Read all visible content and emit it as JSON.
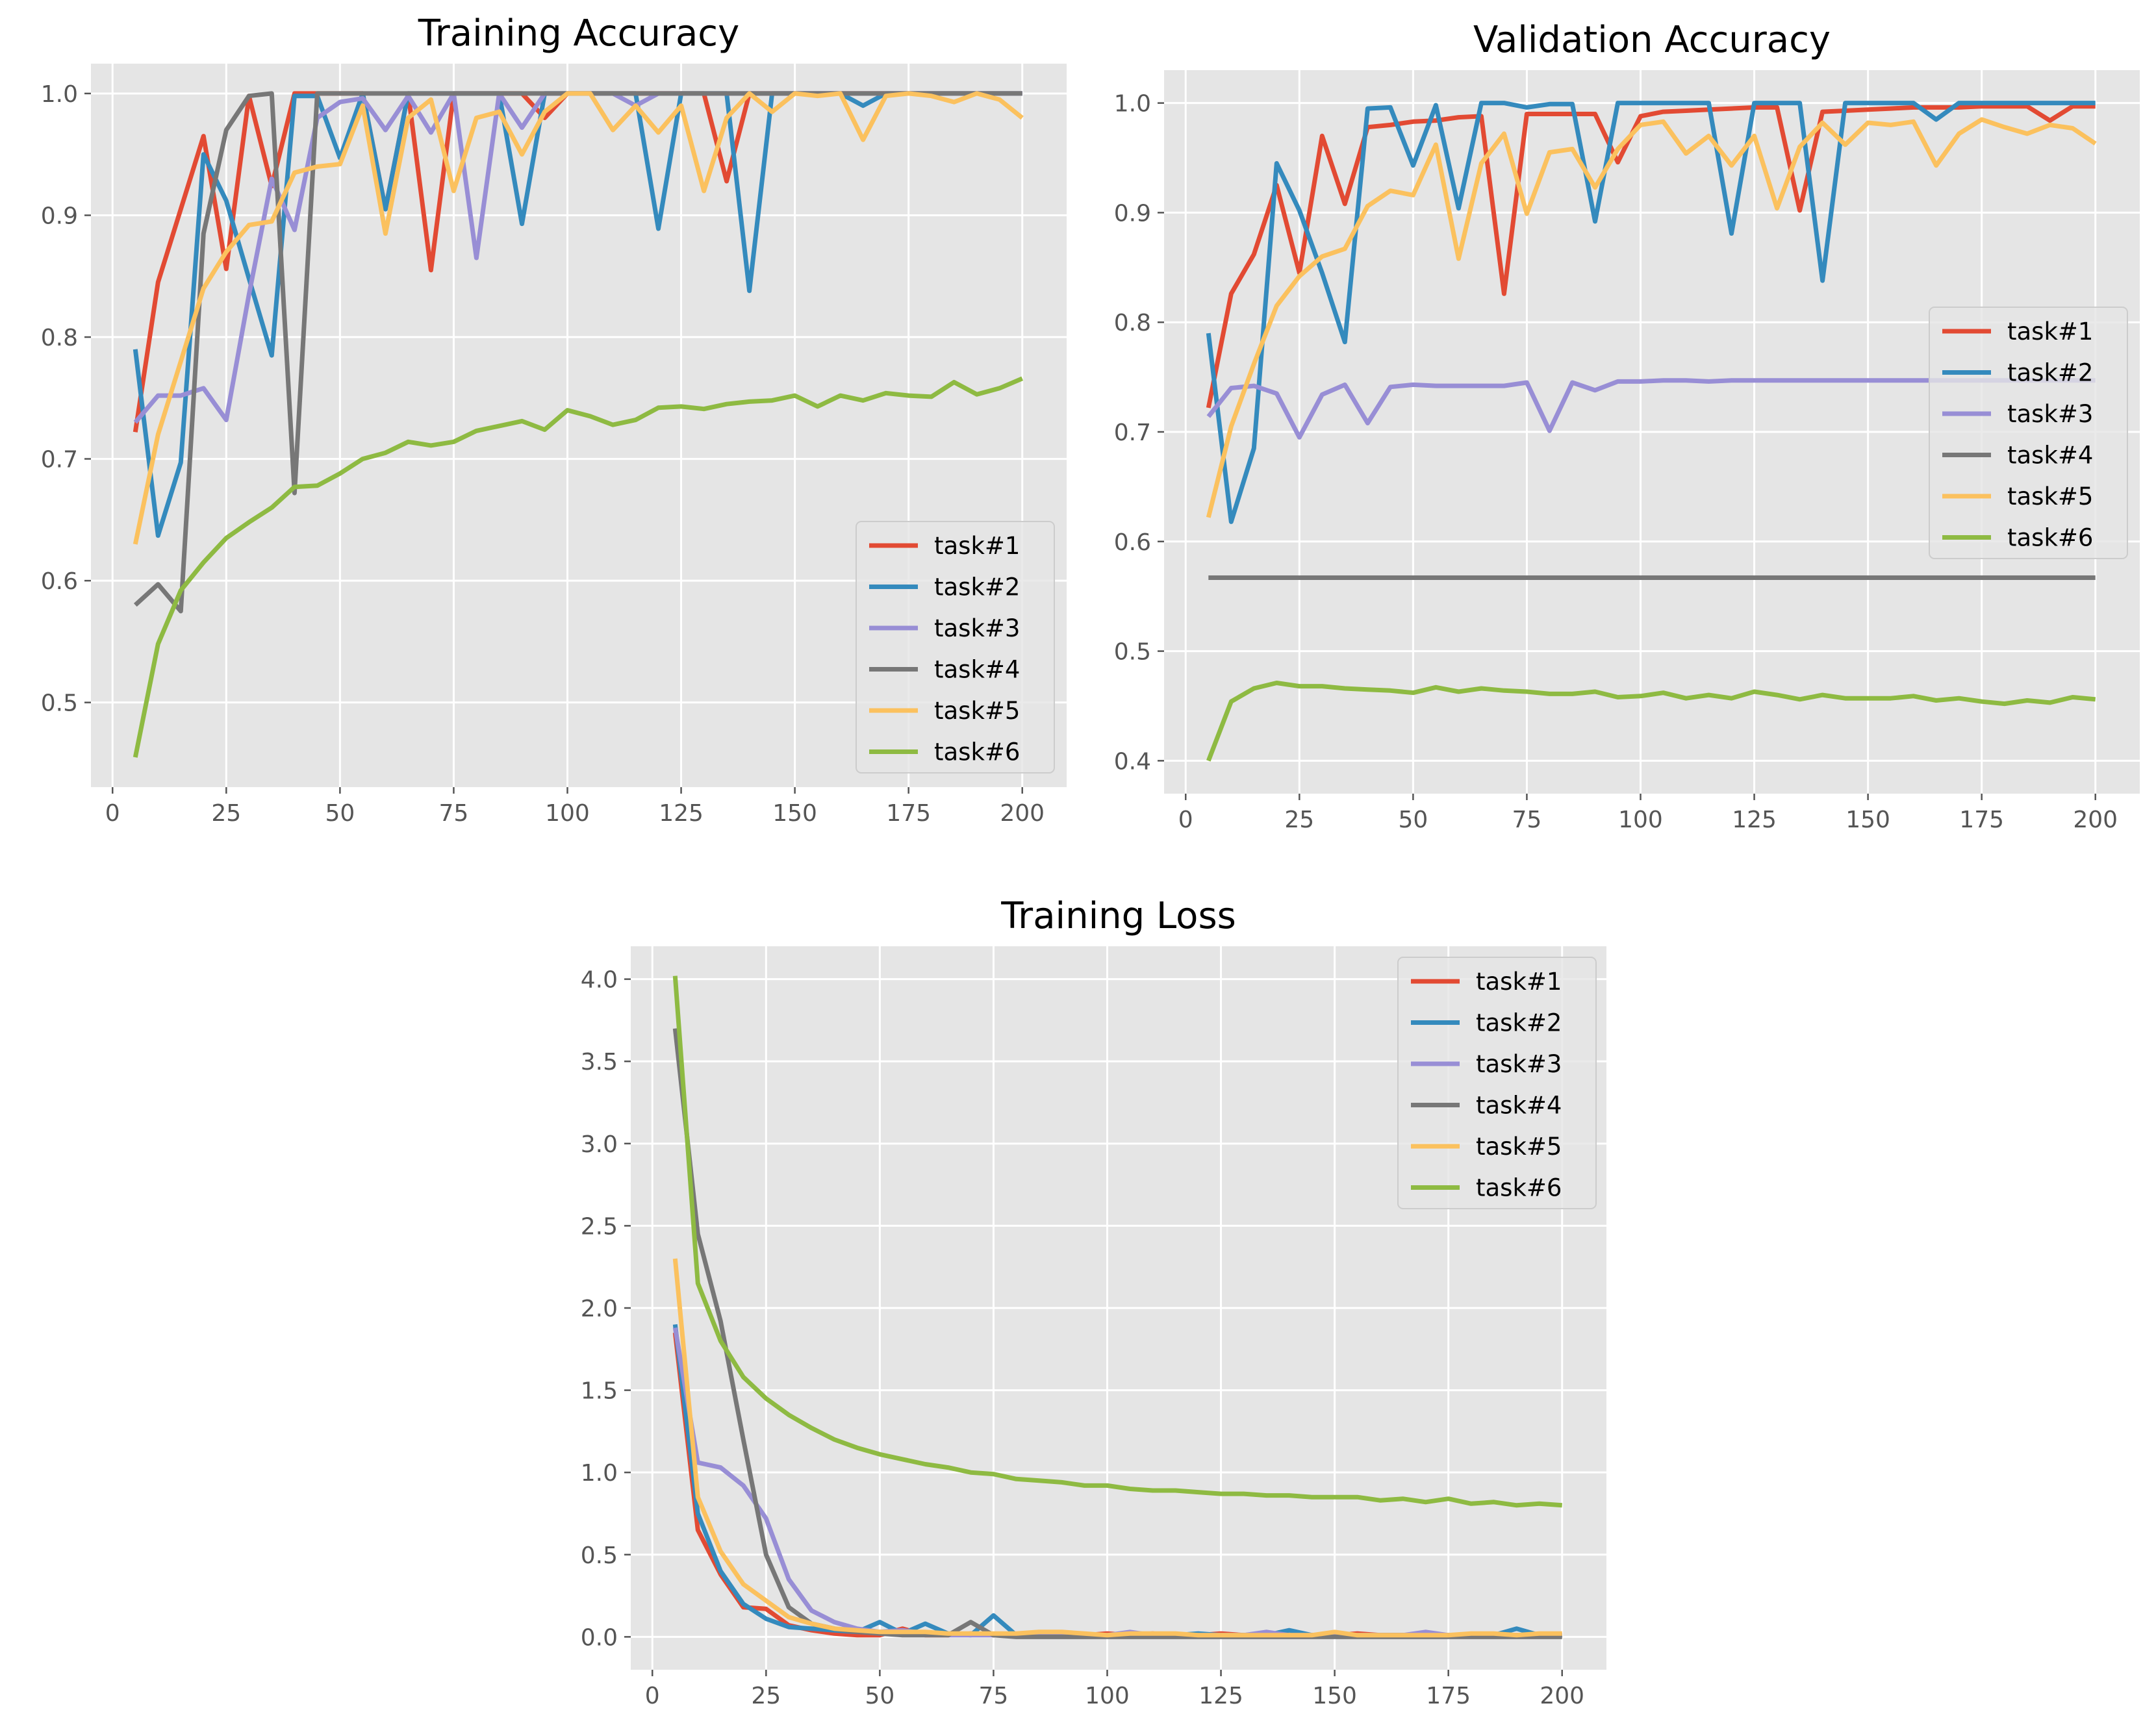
{
  "figure": {
    "colors": {
      "task1": "#E24A33",
      "task2": "#348ABD",
      "task3": "#988ED5",
      "task4": "#777777",
      "task5": "#FBC15E",
      "task6": "#8EBA42",
      "panel_bg": "#E5E5E5",
      "grid": "#FFFFFF",
      "tick_text": "#555555"
    }
  },
  "chart_data": [
    {
      "id": "train_acc",
      "type": "line",
      "title": "Training Accuracy",
      "xlabel": "",
      "ylabel": "",
      "xlim": [
        -4.75,
        209.75
      ],
      "ylim": [
        0.4305,
        1.0245
      ],
      "xticks": [
        0,
        25,
        50,
        75,
        100,
        125,
        150,
        175,
        200
      ],
      "xtick_labels": [
        "0",
        "25",
        "50",
        "75",
        "100",
        "125",
        "150",
        "175",
        "200"
      ],
      "yticks": [
        0.5,
        0.6,
        0.7,
        0.8,
        0.9,
        1.0
      ],
      "ytick_labels": [
        "0.5",
        "0.6",
        "0.7",
        "0.8",
        "0.9",
        "1.0"
      ],
      "grid": true,
      "legend_position": "lower-right",
      "x": [
        5,
        10,
        15,
        20,
        25,
        30,
        35,
        40,
        45,
        50,
        55,
        60,
        65,
        70,
        75,
        80,
        85,
        90,
        95,
        100,
        105,
        110,
        115,
        120,
        125,
        130,
        135,
        140,
        145,
        150,
        155,
        160,
        165,
        170,
        175,
        180,
        185,
        190,
        195,
        200
      ],
      "series": [
        {
          "name": "task#1",
          "values": [
            0.722,
            0.845,
            0.905,
            0.965,
            0.856,
            0.998,
            0.924,
            1.0,
            1.0,
            1.0,
            1.0,
            0.905,
            1.0,
            0.855,
            1.0,
            1.0,
            1.0,
            1.0,
            0.98,
            1.0,
            1.0,
            1.0,
            1.0,
            1.0,
            1.0,
            1.0,
            0.928,
            1.0,
            1.0,
            1.0,
            1.0,
            1.0,
            1.0,
            1.0,
            1.0,
            1.0,
            1.0,
            1.0,
            1.0,
            1.0
          ]
        },
        {
          "name": "task#2",
          "values": [
            0.79,
            0.637,
            0.697,
            0.95,
            0.912,
            0.848,
            0.785,
            0.998,
            0.998,
            0.947,
            1.0,
            0.905,
            1.0,
            1.0,
            1.0,
            1.0,
            1.0,
            0.893,
            1.0,
            1.0,
            1.0,
            1.0,
            1.0,
            0.889,
            1.0,
            1.0,
            1.0,
            0.838,
            1.0,
            1.0,
            1.0,
            1.0,
            0.99,
            1.0,
            1.0,
            1.0,
            1.0,
            1.0,
            1.0,
            1.0
          ]
        },
        {
          "name": "task#3",
          "values": [
            0.73,
            0.752,
            0.752,
            0.758,
            0.732,
            0.835,
            0.93,
            0.888,
            0.98,
            0.993,
            0.996,
            0.97,
            0.998,
            0.968,
            1.0,
            0.865,
            1.0,
            0.972,
            1.0,
            1.0,
            1.0,
            1.0,
            0.99,
            1.0,
            1.0,
            1.0,
            1.0,
            1.0,
            1.0,
            1.0,
            1.0,
            1.0,
            1.0,
            1.0,
            1.0,
            1.0,
            1.0,
            1.0,
            1.0,
            1.0
          ]
        },
        {
          "name": "task#4",
          "values": [
            0.58,
            0.597,
            0.575,
            0.885,
            0.97,
            0.998,
            1.0,
            0.672,
            1.0,
            1.0,
            1.0,
            1.0,
            1.0,
            1.0,
            1.0,
            1.0,
            1.0,
            1.0,
            1.0,
            1.0,
            1.0,
            1.0,
            1.0,
            1.0,
            1.0,
            1.0,
            1.0,
            1.0,
            1.0,
            1.0,
            1.0,
            1.0,
            1.0,
            1.0,
            1.0,
            1.0,
            1.0,
            1.0,
            1.0,
            1.0
          ]
        },
        {
          "name": "task#5",
          "values": [
            0.63,
            0.72,
            0.78,
            0.84,
            0.87,
            0.892,
            0.895,
            0.935,
            0.94,
            0.942,
            0.99,
            0.885,
            0.98,
            0.995,
            0.92,
            0.98,
            0.985,
            0.95,
            0.985,
            1.0,
            1.0,
            0.97,
            0.99,
            0.968,
            0.99,
            0.92,
            0.98,
            1.0,
            0.985,
            1.0,
            0.998,
            1.0,
            0.962,
            0.998,
            1.0,
            0.998,
            0.993,
            1.0,
            0.995,
            0.98
          ]
        },
        {
          "name": "task#6",
          "values": [
            0.455,
            0.548,
            0.592,
            0.615,
            0.635,
            0.648,
            0.66,
            0.677,
            0.678,
            0.688,
            0.7,
            0.705,
            0.714,
            0.711,
            0.714,
            0.723,
            0.727,
            0.731,
            0.724,
            0.74,
            0.735,
            0.728,
            0.732,
            0.742,
            0.743,
            0.741,
            0.745,
            0.747,
            0.748,
            0.752,
            0.743,
            0.752,
            0.748,
            0.754,
            0.752,
            0.751,
            0.763,
            0.753,
            0.758,
            0.766
          ]
        }
      ]
    },
    {
      "id": "val_acc",
      "type": "line",
      "title": "Validation Accuracy",
      "xlabel": "",
      "ylabel": "",
      "xlim": [
        -4.75,
        209.75
      ],
      "ylim": [
        0.37,
        1.03
      ],
      "xticks": [
        0,
        25,
        50,
        75,
        100,
        125,
        150,
        175,
        200
      ],
      "xtick_labels": [
        "0",
        "25",
        "50",
        "75",
        "100",
        "125",
        "150",
        "175",
        "200"
      ],
      "yticks": [
        0.4,
        0.5,
        0.6,
        0.7,
        0.8,
        0.9,
        1.0
      ],
      "ytick_labels": [
        "0.4",
        "0.5",
        "0.6",
        "0.7",
        "0.8",
        "0.9",
        "1.0"
      ],
      "grid": true,
      "legend_position": "center-right",
      "x": [
        5,
        10,
        15,
        20,
        25,
        30,
        35,
        40,
        45,
        50,
        55,
        60,
        65,
        70,
        75,
        80,
        85,
        90,
        95,
        100,
        105,
        110,
        115,
        120,
        125,
        130,
        135,
        140,
        145,
        150,
        155,
        160,
        165,
        170,
        175,
        180,
        185,
        190,
        195,
        200
      ],
      "series": [
        {
          "name": "task#1",
          "values": [
            0.722,
            0.826,
            0.862,
            0.925,
            0.845,
            0.97,
            0.908,
            0.978,
            0.98,
            0.983,
            0.984,
            0.987,
            0.988,
            0.826,
            0.99,
            0.99,
            0.99,
            0.99,
            0.946,
            0.988,
            0.992,
            0.993,
            0.994,
            0.995,
            0.996,
            0.996,
            0.902,
            0.992,
            0.993,
            0.994,
            0.995,
            0.996,
            0.996,
            0.996,
            0.997,
            0.997,
            0.997,
            0.984,
            0.997,
            0.997
          ]
        },
        {
          "name": "task#2",
          "values": [
            0.79,
            0.618,
            0.685,
            0.945,
            0.902,
            0.845,
            0.782,
            0.995,
            0.996,
            0.943,
            0.998,
            0.904,
            1.0,
            1.0,
            0.996,
            0.999,
            0.999,
            0.892,
            1.0,
            1.0,
            1.0,
            1.0,
            1.0,
            0.881,
            1.0,
            1.0,
            1.0,
            0.838,
            1.0,
            1.0,
            1.0,
            1.0,
            0.985,
            1.0,
            1.0,
            1.0,
            1.0,
            1.0,
            1.0,
            1.0
          ]
        },
        {
          "name": "task#3",
          "values": [
            0.714,
            0.74,
            0.742,
            0.735,
            0.695,
            0.734,
            0.743,
            0.708,
            0.741,
            0.743,
            0.742,
            0.742,
            0.742,
            0.742,
            0.745,
            0.701,
            0.745,
            0.738,
            0.746,
            0.746,
            0.747,
            0.747,
            0.746,
            0.747,
            0.747,
            0.747,
            0.747,
            0.747,
            0.747,
            0.747,
            0.747,
            0.747,
            0.747,
            0.747,
            0.747,
            0.747,
            0.747,
            0.747,
            0.747,
            0.747
          ]
        },
        {
          "name": "task#4",
          "values": [
            0.567,
            0.567,
            0.567,
            0.567,
            0.567,
            0.567,
            0.567,
            0.567,
            0.567,
            0.567,
            0.567,
            0.567,
            0.567,
            0.567,
            0.567,
            0.567,
            0.567,
            0.567,
            0.567,
            0.567,
            0.567,
            0.567,
            0.567,
            0.567,
            0.567,
            0.567,
            0.567,
            0.567,
            0.567,
            0.567,
            0.567,
            0.567,
            0.567,
            0.567,
            0.567,
            0.567,
            0.567,
            0.567,
            0.567,
            0.567
          ]
        },
        {
          "name": "task#5",
          "values": [
            0.622,
            0.705,
            0.762,
            0.815,
            0.842,
            0.86,
            0.867,
            0.906,
            0.92,
            0.916,
            0.962,
            0.858,
            0.945,
            0.972,
            0.899,
            0.955,
            0.958,
            0.923,
            0.958,
            0.98,
            0.983,
            0.954,
            0.97,
            0.943,
            0.97,
            0.904,
            0.96,
            0.982,
            0.962,
            0.982,
            0.98,
            0.983,
            0.943,
            0.972,
            0.985,
            0.978,
            0.972,
            0.98,
            0.977,
            0.963
          ]
        },
        {
          "name": "task#6",
          "values": [
            0.4,
            0.454,
            0.466,
            0.471,
            0.468,
            0.468,
            0.466,
            0.465,
            0.464,
            0.462,
            0.467,
            0.463,
            0.466,
            0.464,
            0.463,
            0.461,
            0.461,
            0.463,
            0.458,
            0.459,
            0.462,
            0.457,
            0.46,
            0.457,
            0.463,
            0.46,
            0.456,
            0.46,
            0.457,
            0.457,
            0.457,
            0.459,
            0.455,
            0.457,
            0.454,
            0.452,
            0.455,
            0.453,
            0.458,
            0.456
          ]
        }
      ]
    },
    {
      "id": "train_loss",
      "type": "line",
      "title": "Training Loss",
      "xlabel": "",
      "ylabel": "",
      "xlim": [
        -4.75,
        209.75
      ],
      "ylim": [
        -0.2,
        4.2
      ],
      "xticks": [
        0,
        25,
        50,
        75,
        100,
        125,
        150,
        175,
        200
      ],
      "xtick_labels": [
        "0",
        "25",
        "50",
        "75",
        "100",
        "125",
        "150",
        "175",
        "200"
      ],
      "yticks": [
        0.0,
        0.5,
        1.0,
        1.5,
        2.0,
        2.5,
        3.0,
        3.5,
        4.0
      ],
      "ytick_labels": [
        "0.0",
        "0.5",
        "1.0",
        "1.5",
        "2.0",
        "2.5",
        "3.0",
        "3.5",
        "4.0"
      ],
      "grid": true,
      "legend_position": "upper-right",
      "x": [
        5,
        10,
        15,
        20,
        25,
        30,
        35,
        40,
        45,
        50,
        55,
        60,
        65,
        70,
        75,
        80,
        85,
        90,
        95,
        100,
        105,
        110,
        115,
        120,
        125,
        130,
        135,
        140,
        145,
        150,
        155,
        160,
        165,
        170,
        175,
        180,
        185,
        190,
        195,
        200
      ],
      "series": [
        {
          "name": "task#1",
          "values": [
            1.85,
            0.65,
            0.38,
            0.18,
            0.17,
            0.07,
            0.04,
            0.02,
            0.01,
            0.01,
            0.05,
            0.01,
            0.01,
            0.02,
            0.01,
            0.01,
            0.01,
            0.01,
            0.01,
            0.02,
            0.01,
            0.02,
            0.01,
            0.01,
            0.02,
            0.01,
            0.02,
            0.01,
            0.01,
            0.01,
            0.02,
            0.01,
            0.01,
            0.01,
            0.01,
            0.01,
            0.01,
            0.01,
            0.01,
            0.01
          ]
        },
        {
          "name": "task#2",
          "values": [
            1.9,
            0.75,
            0.4,
            0.2,
            0.11,
            0.06,
            0.05,
            0.04,
            0.03,
            0.09,
            0.02,
            0.08,
            0.02,
            0.01,
            0.13,
            0.01,
            0.01,
            0.01,
            0.01,
            0.01,
            0.01,
            0.01,
            0.01,
            0.02,
            0.01,
            0.01,
            0.01,
            0.04,
            0.01,
            0.01,
            0.01,
            0.01,
            0.01,
            0.01,
            0.01,
            0.01,
            0.01,
            0.05,
            0.01,
            0.01
          ]
        },
        {
          "name": "task#3",
          "values": [
            1.88,
            1.06,
            1.03,
            0.92,
            0.72,
            0.35,
            0.16,
            0.09,
            0.05,
            0.03,
            0.04,
            0.02,
            0.01,
            0.01,
            0.01,
            0.01,
            0.01,
            0.01,
            0.01,
            0.01,
            0.03,
            0.01,
            0.01,
            0.01,
            0.01,
            0.01,
            0.03,
            0.01,
            0.01,
            0.01,
            0.01,
            0.01,
            0.01,
            0.03,
            0.01,
            0.01,
            0.01,
            0.01,
            0.01,
            0.01
          ]
        },
        {
          "name": "task#4",
          "values": [
            3.7,
            2.45,
            1.92,
            1.2,
            0.5,
            0.18,
            0.08,
            0.05,
            0.03,
            0.02,
            0.01,
            0.01,
            0.01,
            0.09,
            0.01,
            0.0,
            0.0,
            0.0,
            0.0,
            0.0,
            0.0,
            0.0,
            0.0,
            0.0,
            0.0,
            0.0,
            0.0,
            0.0,
            0.0,
            0.0,
            0.0,
            0.0,
            0.0,
            0.0,
            0.0,
            0.0,
            0.0,
            0.0,
            0.0,
            0.0
          ]
        },
        {
          "name": "task#5",
          "values": [
            2.3,
            0.85,
            0.52,
            0.32,
            0.22,
            0.12,
            0.08,
            0.05,
            0.04,
            0.03,
            0.03,
            0.03,
            0.02,
            0.02,
            0.02,
            0.02,
            0.03,
            0.03,
            0.02,
            0.01,
            0.02,
            0.02,
            0.02,
            0.01,
            0.01,
            0.01,
            0.01,
            0.01,
            0.01,
            0.03,
            0.01,
            0.01,
            0.01,
            0.01,
            0.01,
            0.02,
            0.02,
            0.01,
            0.02,
            0.02
          ]
        },
        {
          "name": "task#6",
          "values": [
            4.02,
            2.15,
            1.8,
            1.58,
            1.45,
            1.35,
            1.27,
            1.2,
            1.15,
            1.11,
            1.08,
            1.05,
            1.03,
            1.0,
            0.99,
            0.96,
            0.95,
            0.94,
            0.92,
            0.92,
            0.9,
            0.89,
            0.89,
            0.88,
            0.87,
            0.87,
            0.86,
            0.86,
            0.85,
            0.85,
            0.85,
            0.83,
            0.84,
            0.82,
            0.84,
            0.81,
            0.82,
            0.8,
            0.81,
            0.8
          ]
        }
      ]
    }
  ]
}
